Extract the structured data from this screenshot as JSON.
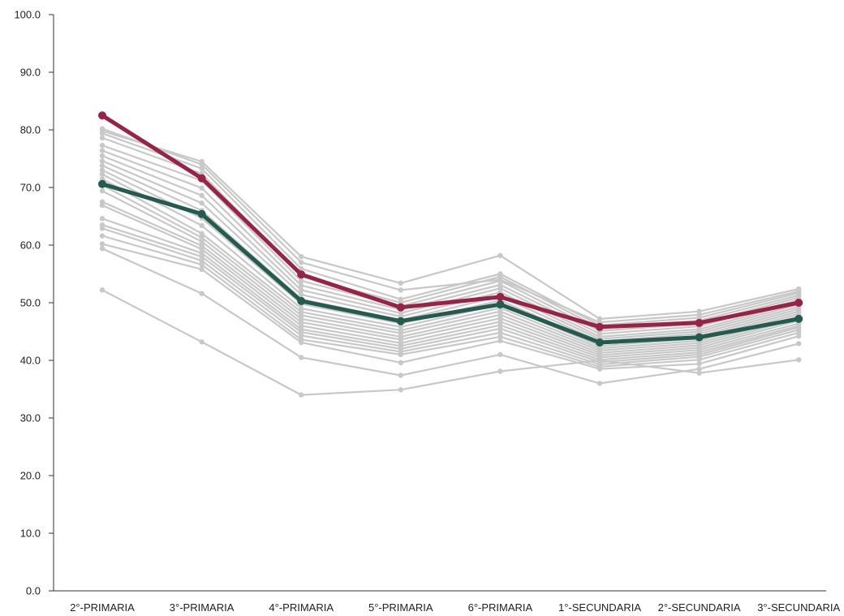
{
  "chart_data": {
    "type": "line",
    "categories": [
      "2°-PRIMARIA",
      "3°-PRIMARIA",
      "4°-PRIMARIA",
      "5°-PRIMARIA",
      "6°-PRIMARIA",
      "1°-SECUNDARIA",
      "2°-SECUNDARIA",
      "3°-SECUNDARIA"
    ],
    "ylim": [
      0,
      100
    ],
    "yticks": [
      "0.0",
      "10.0",
      "20.0",
      "30.0",
      "40.0",
      "50.0",
      "60.0",
      "70.0",
      "80.0",
      "90.0",
      "100.0"
    ],
    "grid": false,
    "colors": {
      "background_series": "#c8c8c8",
      "highlight_red": "#9b2247",
      "highlight_green": "#235b4e",
      "axis": "#333333"
    },
    "series": [
      {
        "values": [
          52.2,
          43.2,
          34.0,
          34.9,
          38.1,
          40.0,
          37.8,
          40.1
        ],
        "color": "background_series"
      },
      {
        "values": [
          59.4,
          51.6,
          40.5,
          37.4,
          41.0,
          36.0,
          38.5,
          42.9
        ],
        "color": "background_series"
      },
      {
        "values": [
          60.2,
          55.8,
          43.1,
          39.6,
          43.4,
          38.5,
          39.4,
          44.2
        ],
        "color": "background_series"
      },
      {
        "values": [
          61.6,
          56.6,
          43.6,
          41.0,
          44.1,
          38.9,
          40.1,
          44.8
        ],
        "color": "background_series"
      },
      {
        "values": [
          62.9,
          57.3,
          44.3,
          41.5,
          44.8,
          39.3,
          40.6,
          45.3
        ],
        "color": "background_series"
      },
      {
        "values": [
          63.5,
          58.0,
          44.9,
          42.0,
          45.5,
          39.7,
          41.0,
          45.7
        ],
        "color": "background_series"
      },
      {
        "values": [
          64.6,
          58.6,
          45.4,
          42.5,
          46.1,
          40.1,
          41.4,
          46.0
        ],
        "color": "background_series"
      },
      {
        "values": [
          66.9,
          59.3,
          46.0,
          43.0,
          46.7,
          40.5,
          41.8,
          46.4
        ],
        "color": "background_series"
      },
      {
        "values": [
          67.5,
          59.9,
          46.6,
          43.6,
          47.3,
          40.9,
          42.2,
          46.9
        ],
        "color": "background_series"
      },
      {
        "values": [
          69.4,
          60.6,
          47.2,
          44.1,
          47.9,
          41.3,
          42.6,
          47.3
        ],
        "color": "background_series"
      },
      {
        "values": [
          70.4,
          61.3,
          47.8,
          44.7,
          48.5,
          41.7,
          43.0,
          47.7
        ],
        "color": "background_series"
      },
      {
        "values": [
          71.5,
          62.0,
          48.4,
          45.2,
          49.1,
          42.1,
          43.4,
          48.1
        ],
        "color": "background_series"
      },
      {
        "values": [
          72.3,
          63.4,
          49.0,
          45.8,
          49.7,
          42.5,
          43.8,
          48.5
        ],
        "color": "background_series"
      },
      {
        "values": [
          73.0,
          64.7,
          49.8,
          46.4,
          50.4,
          42.9,
          44.2,
          48.9
        ],
        "color": "background_series"
      },
      {
        "values": [
          73.8,
          66.0,
          50.6,
          47.0,
          51.1,
          43.3,
          44.6,
          49.3
        ],
        "color": "background_series"
      },
      {
        "values": [
          74.6,
          67.3,
          51.4,
          47.6,
          51.8,
          43.7,
          45.0,
          49.7
        ],
        "color": "background_series"
      },
      {
        "values": [
          75.5,
          68.6,
          52.2,
          48.2,
          52.5,
          44.1,
          45.4,
          50.1
        ],
        "color": "background_series"
      },
      {
        "values": [
          76.4,
          69.9,
          53.0,
          48.8,
          53.1,
          44.6,
          45.9,
          50.5
        ],
        "color": "background_series"
      },
      {
        "values": [
          77.3,
          71.2,
          53.8,
          49.4,
          53.8,
          45.1,
          46.4,
          50.9
        ],
        "color": "background_series"
      },
      {
        "values": [
          78.6,
          72.4,
          54.6,
          50.0,
          54.5,
          45.6,
          46.9,
          51.3
        ],
        "color": "background_series"
      },
      {
        "values": [
          79.4,
          73.3,
          55.9,
          50.6,
          55.0,
          46.1,
          47.4,
          51.7
        ],
        "color": "background_series"
      },
      {
        "values": [
          80.2,
          74.0,
          57.0,
          52.2,
          54.0,
          46.6,
          47.9,
          52.0
        ],
        "color": "background_series"
      },
      {
        "values": [
          79.8,
          74.5,
          58.0,
          53.4,
          58.2,
          47.2,
          48.5,
          52.4
        ],
        "color": "background_series"
      },
      {
        "values": [
          70.6,
          65.4,
          50.3,
          46.8,
          49.7,
          43.1,
          44.0,
          47.2
        ],
        "color": "highlight_green"
      },
      {
        "values": [
          82.5,
          71.6,
          54.9,
          49.2,
          51.0,
          45.8,
          46.5,
          50.0
        ],
        "color": "highlight_red"
      }
    ]
  }
}
